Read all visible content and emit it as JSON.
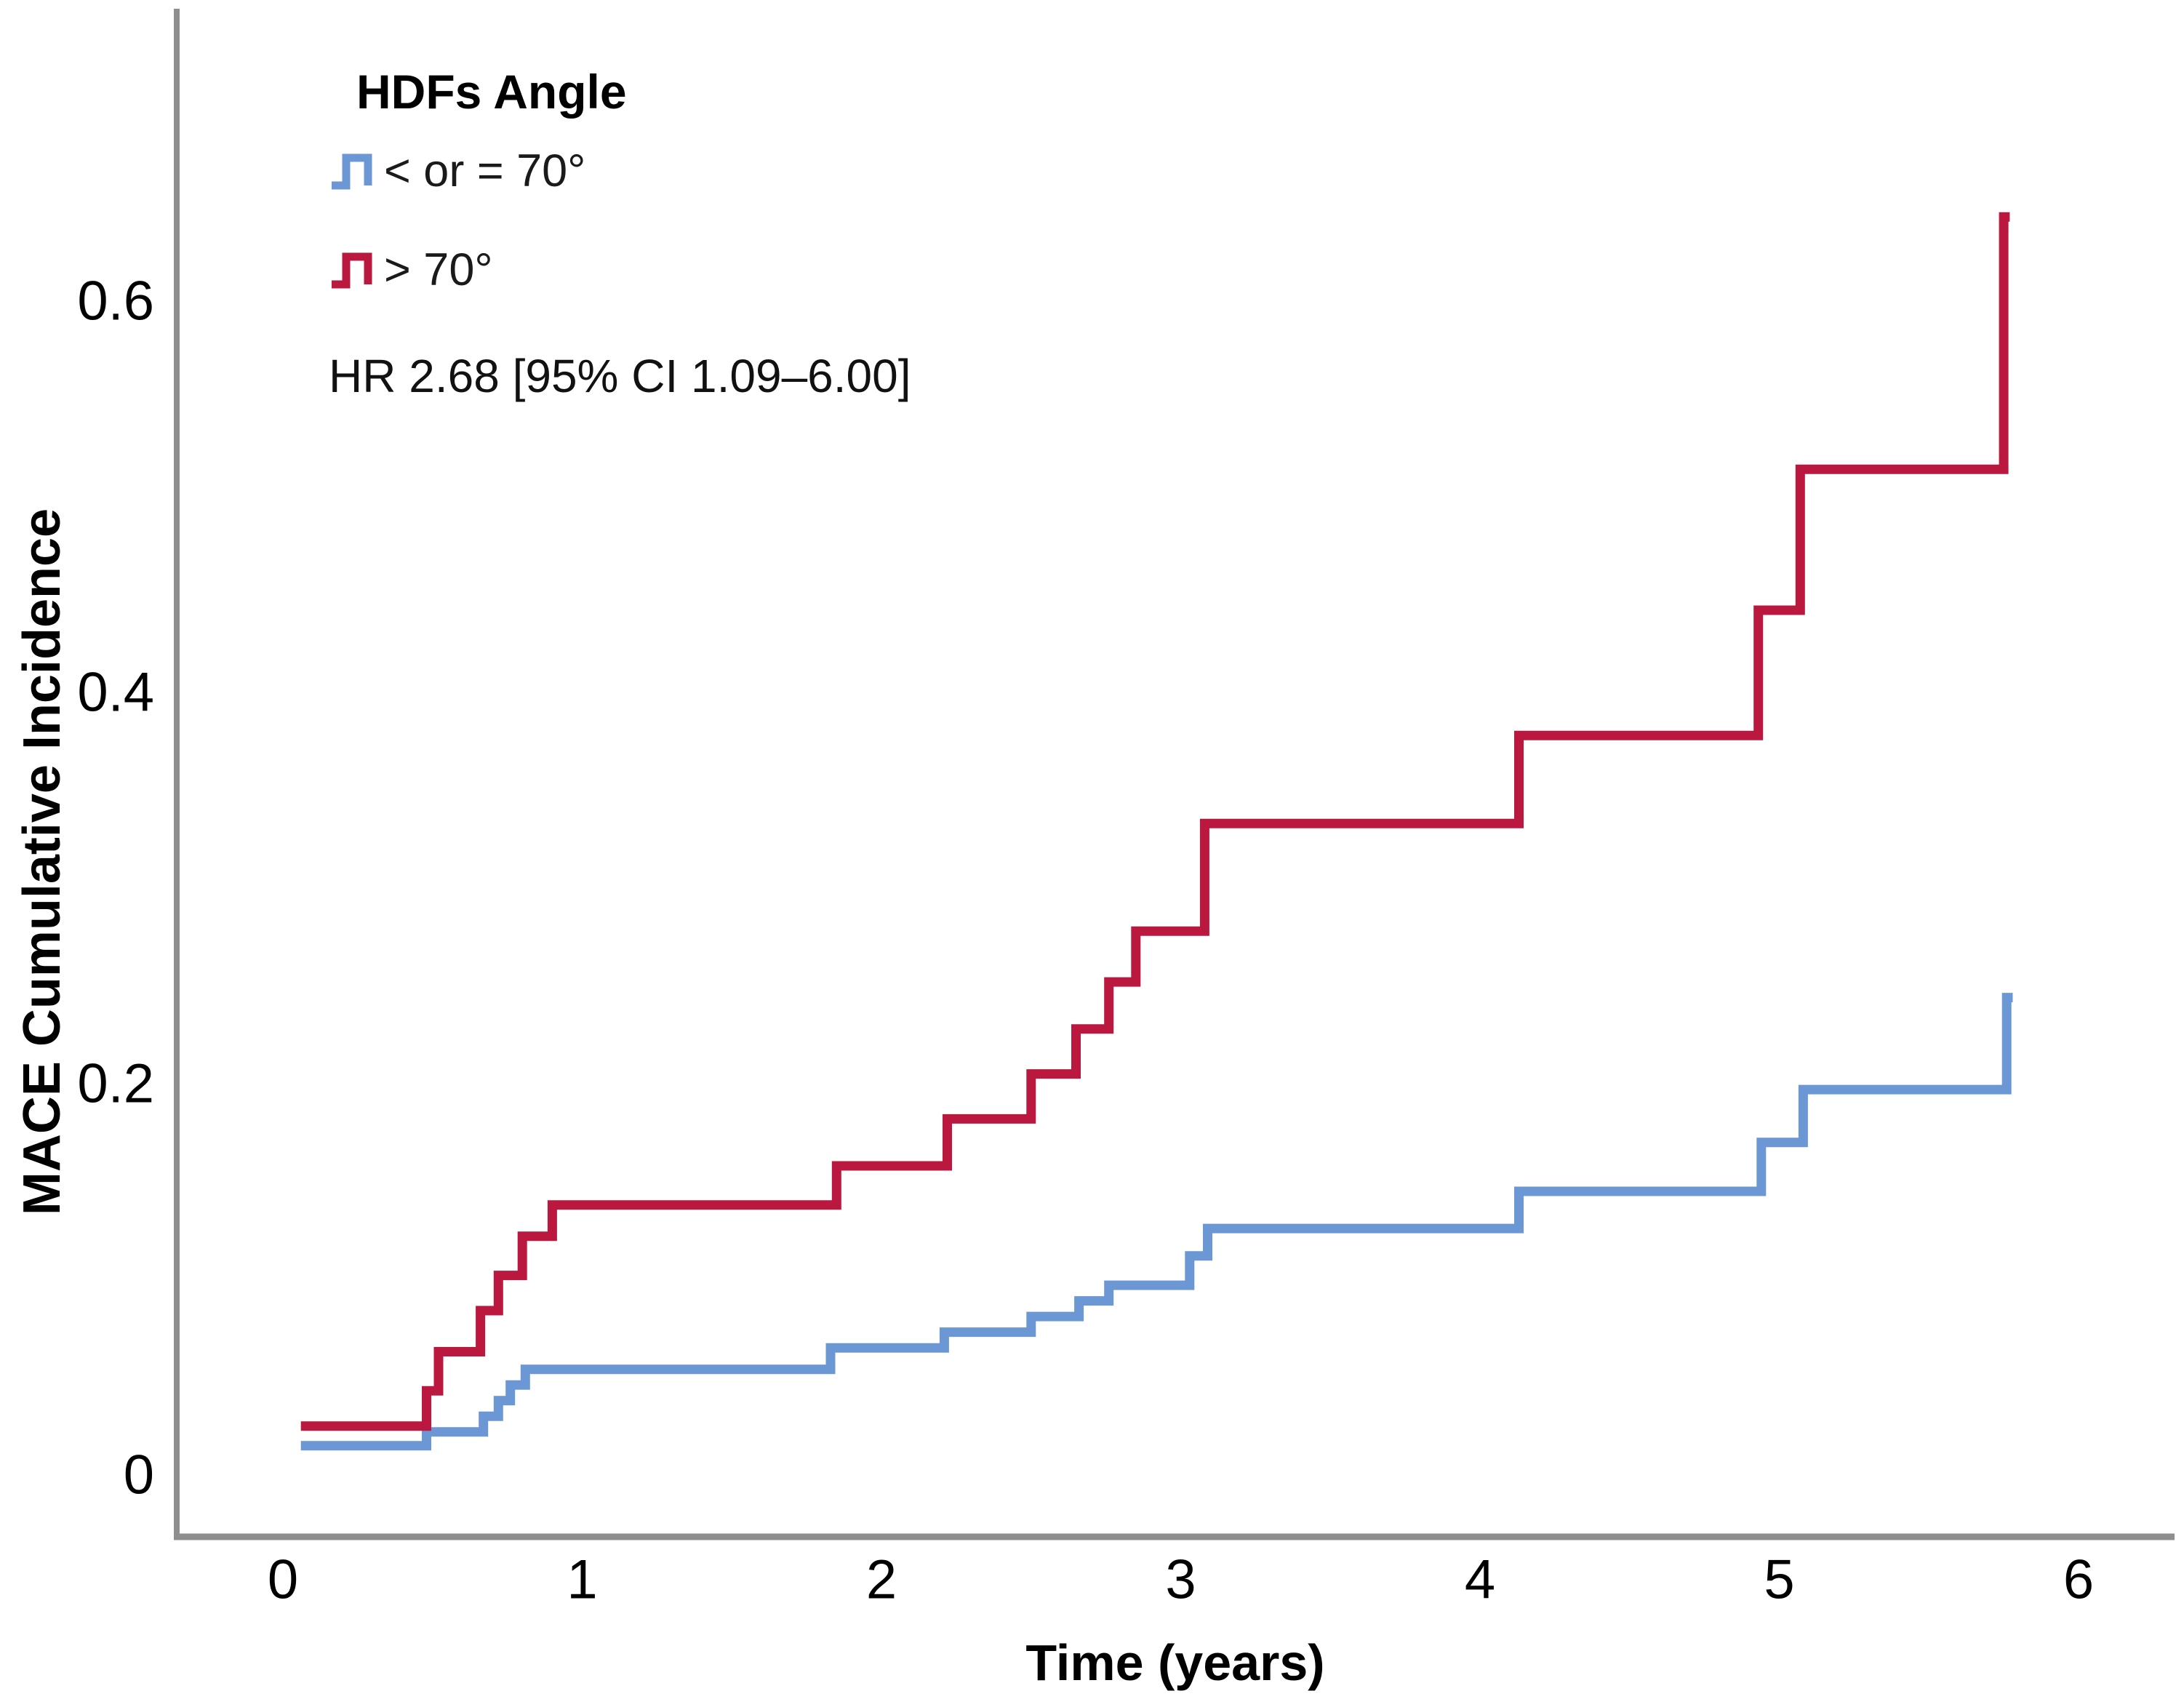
{
  "chart_data": {
    "type": "line",
    "subtype": "step-cumulative-incidence",
    "title": "",
    "xlabel": "Time (years)",
    "ylabel": "MACE Cumulative Incidence",
    "xlim": [
      -0.35,
      6.3
    ],
    "ylim": [
      0,
      0.78
    ],
    "xticks": [
      0,
      1,
      2,
      3,
      4,
      5,
      6
    ],
    "yticks": [
      0,
      0.2,
      0.4,
      0.6
    ],
    "grid": false,
    "legend": {
      "title": "HDFs Angle",
      "position": "top-left"
    },
    "annotation": "HR 2.68 [95% CI 1.09–6.00]",
    "series": [
      {
        "name": "< or = 70°",
        "color": "#6b97d4",
        "end_time": 5.78,
        "points": [
          [
            0.06,
            0.015
          ],
          [
            0.48,
            0.022
          ],
          [
            0.67,
            0.03
          ],
          [
            0.72,
            0.038
          ],
          [
            0.76,
            0.046
          ],
          [
            0.81,
            0.054
          ],
          [
            1.83,
            0.065
          ],
          [
            2.21,
            0.073
          ],
          [
            2.5,
            0.081
          ],
          [
            2.66,
            0.089
          ],
          [
            2.76,
            0.097
          ],
          [
            3.03,
            0.112
          ],
          [
            3.09,
            0.126
          ],
          [
            4.13,
            0.145
          ],
          [
            4.94,
            0.17
          ],
          [
            5.08,
            0.197
          ],
          [
            5.76,
            0.244
          ]
        ]
      },
      {
        "name": "> 70°",
        "color": "#bb1840",
        "end_time": 5.77,
        "points": [
          [
            0.06,
            0.025
          ],
          [
            0.48,
            0.043
          ],
          [
            0.52,
            0.063
          ],
          [
            0.66,
            0.084
          ],
          [
            0.72,
            0.102
          ],
          [
            0.8,
            0.122
          ],
          [
            0.9,
            0.138
          ],
          [
            1.85,
            0.158
          ],
          [
            2.22,
            0.182
          ],
          [
            2.5,
            0.205
          ],
          [
            2.65,
            0.228
          ],
          [
            2.76,
            0.252
          ],
          [
            2.85,
            0.278
          ],
          [
            3.08,
            0.333
          ],
          [
            4.13,
            0.378
          ],
          [
            4.93,
            0.442
          ],
          [
            5.07,
            0.514
          ],
          [
            5.75,
            0.643
          ]
        ]
      }
    ]
  },
  "style": {
    "axis_color": "#8e8e8e",
    "text_color": "#000000",
    "background": "#ffffff"
  }
}
